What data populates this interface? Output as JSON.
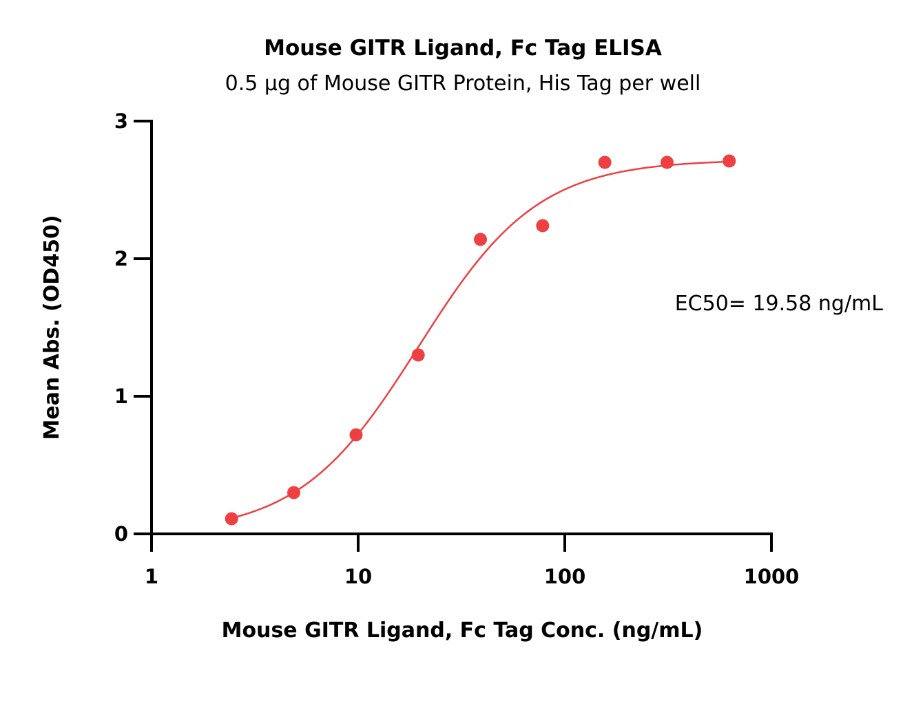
{
  "chart_data": {
    "type": "scatter",
    "title": "Mouse GITR Ligand, Fc Tag ELISA",
    "subtitle": "0.5 μg of Mouse GITR Protein, His Tag per well",
    "xlabel": "Mouse GITR Ligand, Fc Tag Conc. (ng/mL)",
    "ylabel": "Mean Abs. (OD450)",
    "x_scale": "log",
    "xlim": [
      1,
      1000
    ],
    "ylim": [
      0,
      3
    ],
    "x_ticks": [
      "1",
      "10",
      "100",
      "1000"
    ],
    "y_ticks": [
      "0",
      "1",
      "2",
      "3"
    ],
    "series": [
      {
        "x": [
          2.44,
          4.88,
          9.77,
          19.53,
          39.06,
          78.13,
          156.25,
          312.5,
          625
        ],
        "y": [
          0.11,
          0.3,
          0.72,
          1.3,
          2.14,
          2.24,
          2.7,
          2.7,
          2.71
        ]
      }
    ],
    "fit_curve": {
      "model": "4PL",
      "bottom": 0.0,
      "top": 2.72,
      "ec50": 19.58,
      "hill": 1.5
    },
    "annotation": "EC50= 19.58 ng/mL",
    "grid": false,
    "legend": "none",
    "colors": {
      "points": "#ee3f42",
      "curve": "#ee3f42",
      "axes": "#000000"
    }
  }
}
